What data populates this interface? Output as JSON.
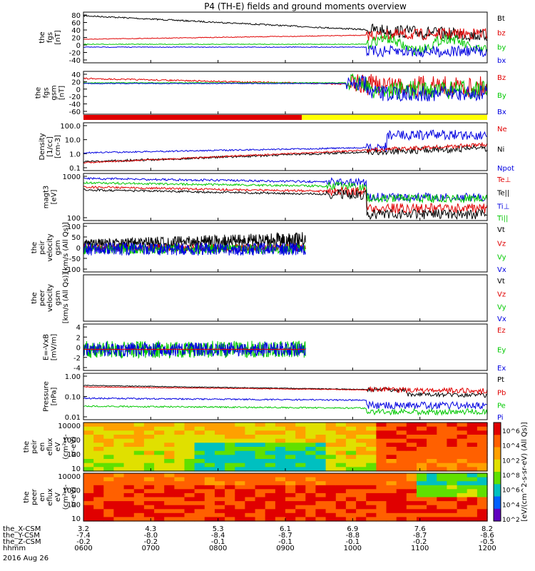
{
  "title": "P4 (TH-E) fields and ground moments overview",
  "colors": {
    "black": "#000000",
    "red": "#e00000",
    "green": "#00c800",
    "blue": "#0000e0",
    "yellow": "#ffff00"
  },
  "chart_data": {
    "type": "line",
    "x_labels": [
      "0600",
      "0700",
      "0800",
      "0900",
      "1000",
      "1100",
      "1200"
    ],
    "orbit_rows": [
      {
        "label": "the_X-CSM",
        "values": [
          "3.2",
          "4.3",
          "5.3",
          "6.1",
          "6.9",
          "7.6",
          "8.2"
        ]
      },
      {
        "label": "the_Y-CSM",
        "values": [
          "-7.4",
          "-8.0",
          "-8.4",
          "-8.7",
          "-8.8",
          "-8.7",
          "-8.6"
        ]
      },
      {
        "label": "the_Z-CSM",
        "values": [
          "-0.2",
          "-0.2",
          "-0.1",
          "-0.1",
          "-0.1",
          "-0.2",
          "-0.5"
        ]
      },
      {
        "label": "hhmm",
        "values": [
          "0600",
          "0700",
          "0800",
          "0900",
          "1000",
          "1100",
          "1200"
        ]
      }
    ],
    "date_label": "2016 Aug 26",
    "panels": [
      {
        "ylabel": [
          "the",
          "fgs",
          "[nT]"
        ],
        "ticks": [
          "80",
          "60",
          "40",
          "20",
          "0",
          "-20",
          "-40"
        ],
        "legend": [
          "Bt",
          "bz",
          "by",
          "bx"
        ],
        "legend_colors": [
          "#000000",
          "#e00000",
          "#00c800",
          "#0000e0"
        ]
      },
      {
        "ylabel": [
          "the",
          "fgs",
          "gsm",
          "[nT]"
        ],
        "ticks": [
          "40",
          "20",
          "0",
          "-20",
          "-40",
          "-60"
        ],
        "legend": [
          "Bz",
          "By",
          "Bx"
        ],
        "legend_colors": [
          "#e00000",
          "#00c800",
          "#0000e0"
        ]
      },
      {
        "ylabel": [
          "Density",
          "[1/cc]",
          "[cm-3]"
        ],
        "ticks": [
          "100.0",
          "10.0",
          "1.0",
          "0.1"
        ],
        "legend": [
          "Ne",
          "Ni",
          "Npot"
        ],
        "legend_colors": [
          "#e00000",
          "#000000",
          "#0000e0"
        ]
      },
      {
        "ylabel": [
          "magt3",
          "[eV]"
        ],
        "ticks": [
          "1000",
          "100"
        ],
        "legend": [
          "Te⊥",
          "Te||",
          "Ti⊥",
          "Ti||"
        ],
        "legend_colors": [
          "#e00000",
          "#000000",
          "#0000e0",
          "#00c800"
        ]
      },
      {
        "ylabel": [
          "the",
          "peir",
          "velocity",
          "gsm",
          "[km/s (All Qs)]"
        ],
        "ticks": [
          "100",
          "50",
          "0",
          "-50",
          "-100"
        ],
        "legend": [
          "Vt",
          "Vz",
          "Vy",
          "Vx"
        ],
        "legend_colors": [
          "#000000",
          "#e00000",
          "#00c800",
          "#0000e0"
        ]
      },
      {
        "ylabel": [
          "the",
          "peer",
          "velocity",
          "gsm",
          "[km/s (All Qs)]"
        ],
        "ticks": [],
        "legend": [
          "Vt",
          "Vz",
          "Vy",
          "Vx"
        ],
        "legend_colors": [
          "#000000",
          "#e00000",
          "#00c800",
          "#0000e0"
        ]
      },
      {
        "ylabel": [
          "E=-VxB",
          "[mV/m]"
        ],
        "ticks": [
          "4",
          "2",
          "0",
          "-2",
          "-4"
        ],
        "legend": [
          "Ez",
          "Ey",
          "Ex"
        ],
        "legend_colors": [
          "#e00000",
          "#00c800",
          "#0000e0"
        ]
      },
      {
        "ylabel": [
          "Pressure",
          "[nPa]"
        ],
        "ticks": [
          "1.00",
          "0.10",
          "0.01"
        ],
        "legend": [
          "Pt",
          "Pb",
          "Pe",
          "Pi"
        ],
        "legend_colors": [
          "#000000",
          "#e00000",
          "#00c800",
          "#0000e0"
        ]
      },
      {
        "ylabel": [
          "the",
          "peir",
          "en",
          "eflux",
          "eV",
          "(cm²-s-",
          "sr-eV)"
        ],
        "ticks": [
          "10000",
          "1000",
          "100",
          "10"
        ],
        "legend": [],
        "legend_colors": []
      },
      {
        "ylabel": [
          "the",
          "peer",
          "en",
          "eflux",
          "eV",
          "(cm²-s-",
          "sr-eV)"
        ],
        "ticks": [
          "10000",
          "1000",
          "100",
          "10"
        ],
        "legend": [],
        "legend_colors": []
      }
    ],
    "colorbar": {
      "label": "[eV/(cm^2-s-sr-eV) (All Qs)]",
      "ticks": [
        "10^6",
        "10^4",
        "10^2",
        "10^8",
        "10^6",
        "10^4",
        "10^2"
      ]
    }
  }
}
